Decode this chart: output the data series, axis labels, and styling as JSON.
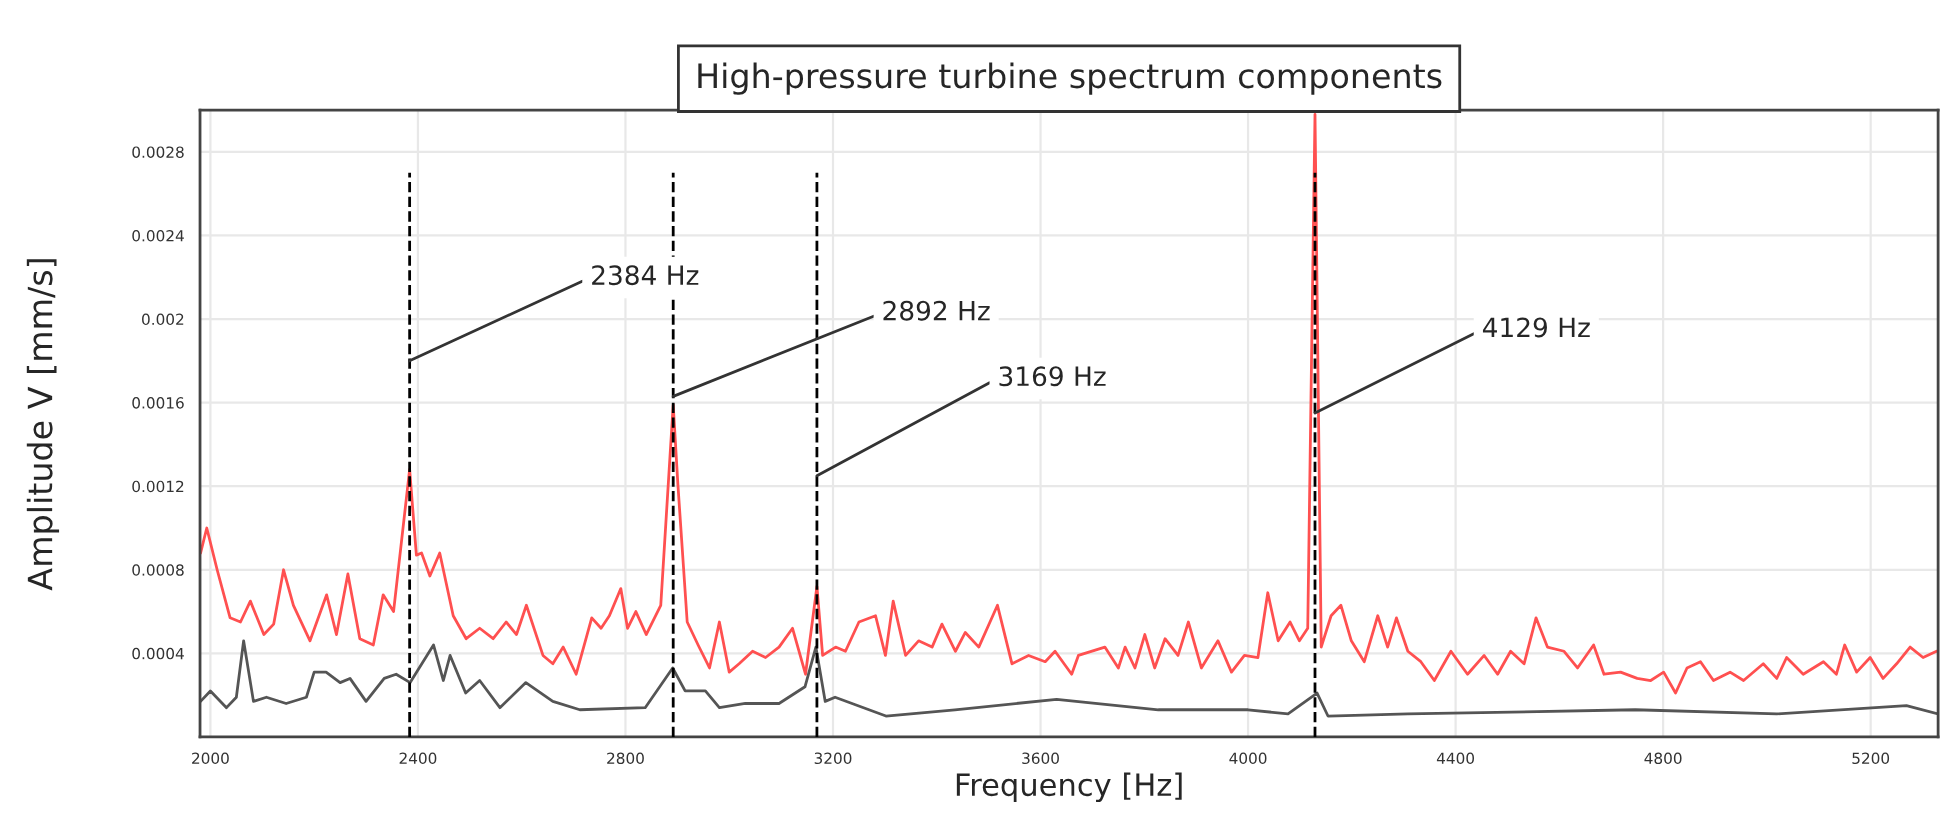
{
  "chart_data": {
    "type": "line",
    "title": "High-pressure turbine spectrum components",
    "xlabel": "Frequency [Hz]",
    "ylabel": "Amplitude V [mm/s]",
    "xlim": [
      1980,
      5330
    ],
    "ylim": [
      0,
      0.003
    ],
    "xticks": [
      2000,
      2400,
      2800,
      3200,
      3600,
      4000,
      4400,
      4800,
      5200
    ],
    "yticks": [
      0.0004,
      0.0008,
      0.0012,
      0.0016,
      0.002,
      0.0024,
      0.0028
    ],
    "grid": true,
    "line_style": "solid",
    "series": [
      {
        "color": "#ff5050",
        "x": [
          1981,
          1993,
          2013,
          2038,
          2058,
          2077,
          2103,
          2122,
          2141,
          2160,
          2192,
          2224,
          2243,
          2265,
          2288,
          2314,
          2333,
          2353,
          2384,
          2397,
          2407,
          2423,
          2442,
          2468,
          2493,
          2519,
          2545,
          2570,
          2590,
          2609,
          2641,
          2660,
          2680,
          2705,
          2735,
          2753,
          2769,
          2791,
          2804,
          2820,
          2840,
          2868,
          2892,
          2901,
          2919,
          2940,
          2962,
          2981,
          3000,
          3019,
          3045,
          3070,
          3096,
          3122,
          3147,
          3169,
          3180,
          3205,
          3224,
          3250,
          3282,
          3301,
          3316,
          3340,
          3365,
          3391,
          3410,
          3436,
          3455,
          3481,
          3517,
          3545,
          3577,
          3609,
          3628,
          3660,
          3673,
          3724,
          3750,
          3763,
          3782,
          3801,
          3820,
          3840,
          3865,
          3885,
          3910,
          3942,
          3968,
          3993,
          4019,
          4038,
          4058,
          4081,
          4099,
          4115,
          4129,
          4141,
          4160,
          4179,
          4199,
          4224,
          4250,
          4269,
          4286,
          4308,
          4333,
          4359,
          4391,
          4423,
          4455,
          4481,
          4506,
          4532,
          4555,
          4577,
          4609,
          4635,
          4666,
          4686,
          4718,
          4750,
          4776,
          4801,
          4824,
          4846,
          4872,
          4897,
          4929,
          4955,
          4993,
          5019,
          5038,
          5070,
          5109,
          5134,
          5150,
          5173,
          5199,
          5224,
          5250,
          5276,
          5301,
          5327
        ],
        "values": [
          0.00088,
          0.001,
          0.0008,
          0.00057,
          0.00055,
          0.00065,
          0.00049,
          0.00054,
          0.0008,
          0.00063,
          0.00046,
          0.00068,
          0.00049,
          0.00078,
          0.00047,
          0.00044,
          0.00068,
          0.0006,
          0.00128,
          0.00087,
          0.00088,
          0.00077,
          0.00088,
          0.00058,
          0.00047,
          0.00052,
          0.00047,
          0.00055,
          0.00049,
          0.00063,
          0.00039,
          0.00035,
          0.00043,
          0.0003,
          0.00057,
          0.00052,
          0.00058,
          0.00071,
          0.00052,
          0.0006,
          0.00049,
          0.00063,
          0.00159,
          0.00121,
          0.00055,
          0.00044,
          0.00033,
          0.00055,
          0.00031,
          0.00035,
          0.00041,
          0.00038,
          0.00043,
          0.00052,
          0.0003,
          0.00072,
          0.00039,
          0.00043,
          0.00041,
          0.00055,
          0.00058,
          0.00039,
          0.00065,
          0.00039,
          0.00046,
          0.00043,
          0.00054,
          0.00041,
          0.0005,
          0.00043,
          0.00063,
          0.00035,
          0.00039,
          0.00036,
          0.00041,
          0.0003,
          0.00039,
          0.00043,
          0.00033,
          0.00043,
          0.00033,
          0.00049,
          0.00033,
          0.00047,
          0.00039,
          0.00055,
          0.00033,
          0.00046,
          0.00031,
          0.00039,
          0.00038,
          0.00069,
          0.00046,
          0.00055,
          0.00046,
          0.00052,
          0.00298,
          0.00043,
          0.00058,
          0.00063,
          0.00046,
          0.00036,
          0.00058,
          0.00043,
          0.00057,
          0.00041,
          0.00036,
          0.00027,
          0.00041,
          0.0003,
          0.00039,
          0.0003,
          0.00041,
          0.00035,
          0.00057,
          0.00043,
          0.00041,
          0.00033,
          0.00044,
          0.0003,
          0.00031,
          0.00028,
          0.00027,
          0.00031,
          0.00021,
          0.00033,
          0.00036,
          0.00027,
          0.00031,
          0.00027,
          0.00035,
          0.00028,
          0.00038,
          0.0003,
          0.00036,
          0.0003,
          0.00044,
          0.00031,
          0.00038,
          0.00028,
          0.00035,
          0.00043,
          0.00038,
          0.00041
        ]
      },
      {
        "color": "#555555",
        "x": [
          1981,
          2000,
          2031,
          2050,
          2064,
          2083,
          2108,
          2146,
          2185,
          2200,
          2223,
          2250,
          2269,
          2300,
          2335,
          2358,
          2385,
          2430,
          2449,
          2462,
          2492,
          2519,
          2558,
          2608,
          2660,
          2712,
          2838,
          2891,
          2915,
          2954,
          2981,
          3031,
          3096,
          3146,
          3167,
          3185,
          3204,
          3302,
          3435,
          3631,
          3827,
          4000,
          4077,
          4133,
          4154,
          4308,
          4746,
          5019,
          5269,
          5330
        ],
        "values": [
          0.00017,
          0.00022,
          0.00014,
          0.00019,
          0.00046,
          0.00017,
          0.00019,
          0.00016,
          0.00019,
          0.00031,
          0.00031,
          0.00026,
          0.00028,
          0.00017,
          0.00028,
          0.0003,
          0.00026,
          0.00044,
          0.00027,
          0.00039,
          0.00021,
          0.00027,
          0.00014,
          0.00026,
          0.00017,
          0.00013,
          0.00014,
          0.00033,
          0.00022,
          0.00022,
          0.00014,
          0.00016,
          0.00016,
          0.00024,
          0.00043,
          0.00017,
          0.00019,
          0.0001,
          0.00013,
          0.00018,
          0.00013,
          0.00013,
          0.00011,
          0.00021,
          0.0001,
          0.00011,
          0.00013,
          0.00011,
          0.00015,
          0.00011
        ]
      }
    ],
    "ref_lines": [
      {
        "axis": "x",
        "value": 2384,
        "color": "#000000",
        "line_style": "dashed"
      },
      {
        "axis": "x",
        "value": 2892,
        "color": "#000000",
        "line_style": "dashed"
      },
      {
        "axis": "x",
        "value": 3169,
        "color": "#000000",
        "line_style": "dashed"
      },
      {
        "axis": "x",
        "value": 4129,
        "color": "#000000",
        "line_style": "dashed"
      }
    ],
    "annotations": [
      {
        "text": "2384 Hz",
        "x": 2384,
        "y": 0.0018
      },
      {
        "text": "2892 Hz",
        "x": 2892,
        "y": 0.00163
      },
      {
        "text": "3169 Hz",
        "x": 3169,
        "y": 0.00125
      },
      {
        "text": "4129 Hz",
        "x": 4129,
        "y": 0.00155
      }
    ]
  }
}
